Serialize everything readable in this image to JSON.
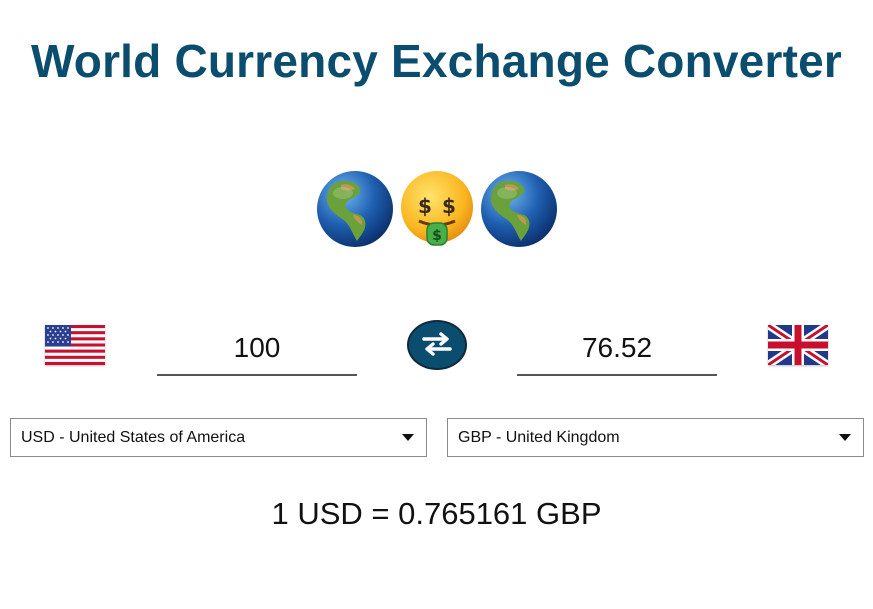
{
  "app": {
    "title": "World Currency Exchange Converter"
  },
  "decor": {
    "emojis": [
      "globe-americas-icon",
      "money-mouth-face-icon",
      "globe-americas-icon"
    ]
  },
  "converter": {
    "from": {
      "flag": "us-flag-icon",
      "amount": "100",
      "currency": "USD - United States of America"
    },
    "to": {
      "flag": "uk-flag-icon",
      "amount": "76.52",
      "currency": "GBP - United Kingdom"
    },
    "swap_icon": "swap-arrows-icon",
    "rate_text": "1 USD = 0.765161 GBP"
  },
  "colors": {
    "accent": "#0a4d6e"
  }
}
